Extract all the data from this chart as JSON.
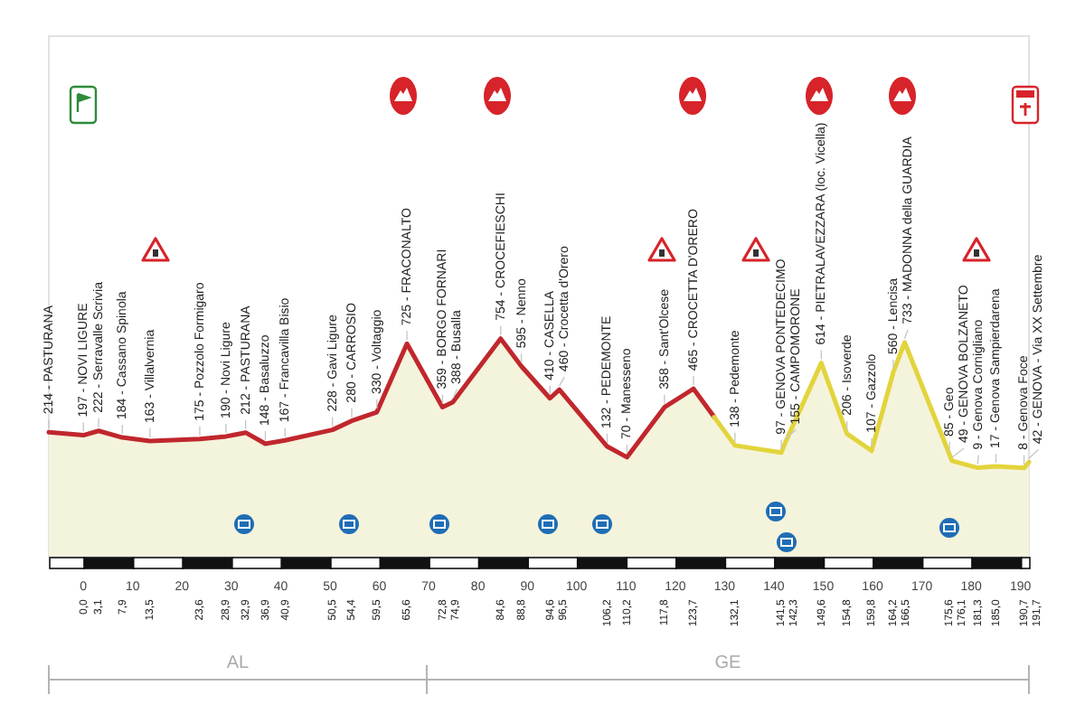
{
  "chart_data": {
    "type": "area",
    "series": [
      {
        "x": [
          -7,
          0,
          3.1,
          7.9,
          13.5,
          23.6,
          28.9,
          32.9,
          36.9,
          40.9,
          50.5,
          54.4,
          59.5,
          65.6,
          72.8,
          74.9,
          84.6,
          88.8,
          94.6,
          96.5,
          106.2,
          110.2,
          117.8,
          123.7,
          132.1,
          141.5,
          142.3,
          149.6,
          154.8,
          159.8,
          164.2,
          166.5,
          175.6,
          176.1,
          181.3,
          185.0,
          190.7,
          191.7
        ],
        "values": [
          214,
          197,
          222,
          184,
          163,
          175,
          190,
          212,
          148,
          167,
          228,
          280,
          330,
          725,
          359,
          388,
          754,
          595,
          410,
          460,
          132,
          70,
          358,
          465,
          138,
          97,
          155,
          614,
          206,
          107,
          560,
          733,
          85,
          49,
          9,
          17,
          8,
          42
        ],
        "colors": [
          "#c0272d",
          "#c0272d",
          "#c0272d",
          "#c0272d",
          "#c0272d",
          "#c0272d",
          "#c0272d",
          "#c0272d",
          "#c0272d",
          "#c0272d",
          "#c0272d",
          "#c0272d",
          "#c0272d",
          "#c0272d",
          "#c0272d",
          "#c0272d",
          "#c0272d",
          "#c0272d",
          "#c0272d",
          "#c0272d",
          "#c0272d",
          "#c0272d",
          "#c0272d",
          "#c0272d",
          "#e2d43c",
          "#e2d43c",
          "#e2d43c",
          "#e2d43c",
          "#e2d43c",
          "#e2d43c",
          "#e2d43c",
          "#e2d43c",
          "#e2d43c",
          "#e2d43c",
          "#e2d43c",
          "#e2d43c",
          "#e2d43c",
          "#e2d43c"
        ],
        "value_labels": [
          "214 - PASTURANA",
          "197 - NOVI LIGURE",
          "222 - Serravalle Scrivia",
          "184 - Cassano Spinola",
          "163 - Villalvernia",
          "175 - Pozzolo Formigaro",
          "190 - Novi Ligure",
          "212 - PASTURANA",
          "148 - Basaluzzo",
          "167 - Francavilla Bisio",
          "228 - Gavi Ligure",
          "280 - CARROSIO",
          "330 - Voltaggio",
          "725 - FRACONALTO",
          "359 - BORGO FORNARI",
          "388 - Busalla",
          "754 - CROCEFIESCHI",
          "595 - Nenno",
          "410 - CASELLA",
          "460 - Crocetta d'Orero",
          "132 - PEDEMONTE",
          "70 - Manesseno",
          "358 - Sant'Olcese",
          "465 - CROCETTA D'ORERO",
          "138 - Pedemonte",
          "97 - GENOVA PONTEDECIMO",
          "155 - CAMPOMORONE",
          "614 - PIETRALAVEZZARA (loc. Vicella)",
          "206 - Isoverde",
          "107 - Gazzolo",
          "560 - Lencisa",
          "733 - MADONNA della GUARDIA",
          "85 - Geo",
          "49 - GENOVA BOLZANETO",
          "9 - Genova Cornigliano",
          "17 - Genova Sampierdarena",
          "8 - Genova Foce",
          "42 - GENOVA - Via XX Settembre"
        ]
      }
    ],
    "xlim": [
      -7,
      191.7
    ],
    "xticks": [
      0,
      10,
      20,
      30,
      40,
      50,
      60,
      70,
      80,
      90,
      100,
      110,
      120,
      130,
      140,
      150,
      160,
      170,
      180,
      190
    ],
    "tick_labels": "x",
    "grid": false,
    "legend": false,
    "annotations": [
      "0,0",
      "3,1",
      "7,9",
      "13,5",
      "23,6",
      "28,9",
      "32,9",
      "36,9",
      "40,9",
      "50,5",
      "54,4",
      "59,5",
      "65,6",
      "72,8",
      "74,9",
      "84,6",
      "88,8",
      "94,6",
      "96,5",
      "106,2",
      "110,2",
      "117,8",
      "123,7",
      "132,1",
      "141,5",
      "142,3",
      "149,6",
      "154,8",
      "159,8",
      "164,2",
      "166,5",
      "175,6",
      "176,1",
      "181,3",
      "185,0",
      "190,7",
      "191,7",
      "AL",
      "GE"
    ]
  }
}
